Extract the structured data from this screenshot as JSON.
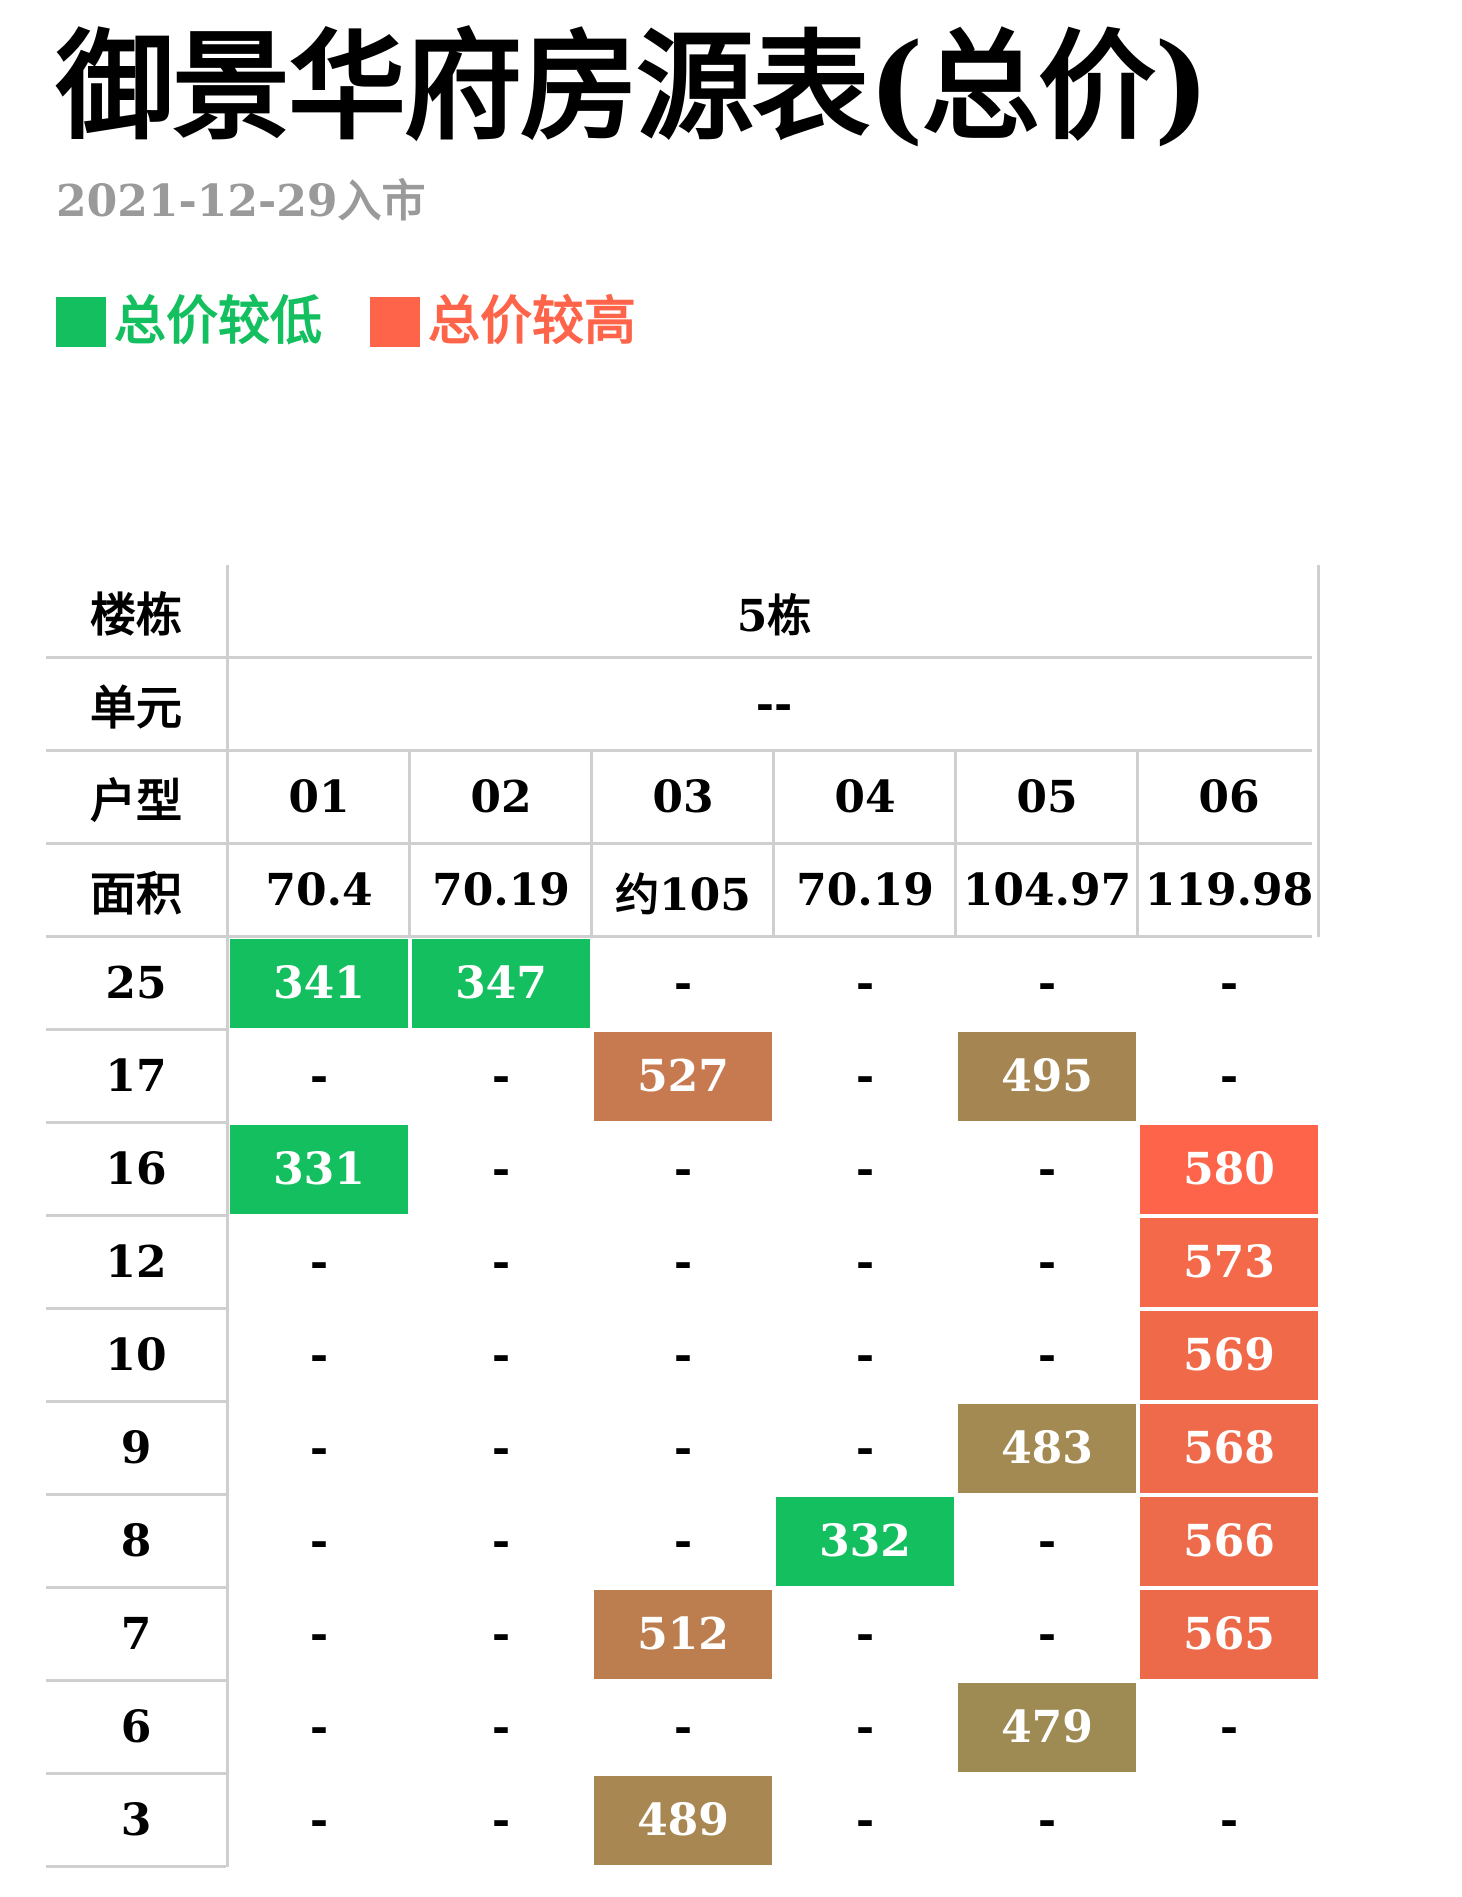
{
  "title": "御景华府房源表(总价)",
  "subtitle": "2021-12-29入市",
  "legend": [
    {
      "label": "总价较低",
      "color": "#13bf5f"
    },
    {
      "label": "总价较高",
      "color": "#fd6449"
    }
  ],
  "table": {
    "labels": {
      "building": "楼栋",
      "unit": "单元",
      "type": "户型",
      "area": "面积"
    },
    "building": "5栋",
    "unit": "--",
    "types": [
      "01",
      "02",
      "03",
      "04",
      "05",
      "06"
    ],
    "areas": [
      "70.4",
      "70.19",
      "约105",
      "70.19",
      "104.97",
      "119.98"
    ],
    "rows": [
      {
        "floor": "25",
        "cells": [
          {
            "text": "341",
            "color": "#13bf5f"
          },
          {
            "text": "347",
            "color": "#13bf5f"
          },
          {
            "text": "-"
          },
          {
            "text": "-"
          },
          {
            "text": "-"
          },
          {
            "text": "-"
          }
        ]
      },
      {
        "floor": "17",
        "cells": [
          {
            "text": "-"
          },
          {
            "text": "-"
          },
          {
            "text": "527",
            "color": "#c77a4f"
          },
          {
            "text": "-"
          },
          {
            "text": "495",
            "color": "#a58652"
          },
          {
            "text": "-"
          }
        ]
      },
      {
        "floor": "16",
        "cells": [
          {
            "text": "331",
            "color": "#13bf5f"
          },
          {
            "text": "-"
          },
          {
            "text": "-"
          },
          {
            "text": "-"
          },
          {
            "text": "-"
          },
          {
            "text": "580",
            "color": "#fd6449"
          }
        ]
      },
      {
        "floor": "12",
        "cells": [
          {
            "text": "-"
          },
          {
            "text": "-"
          },
          {
            "text": "-"
          },
          {
            "text": "-"
          },
          {
            "text": "-"
          },
          {
            "text": "573",
            "color": "#f3694a"
          }
        ]
      },
      {
        "floor": "10",
        "cells": [
          {
            "text": "-"
          },
          {
            "text": "-"
          },
          {
            "text": "-"
          },
          {
            "text": "-"
          },
          {
            "text": "-"
          },
          {
            "text": "569",
            "color": "#f06a4a"
          }
        ]
      },
      {
        "floor": "9",
        "cells": [
          {
            "text": "-"
          },
          {
            "text": "-"
          },
          {
            "text": "-"
          },
          {
            "text": "-"
          },
          {
            "text": "483",
            "color": "#a28a52"
          },
          {
            "text": "568",
            "color": "#ef6a4a"
          }
        ]
      },
      {
        "floor": "8",
        "cells": [
          {
            "text": "-"
          },
          {
            "text": "-"
          },
          {
            "text": "-"
          },
          {
            "text": "332",
            "color": "#13bf5f"
          },
          {
            "text": "-"
          },
          {
            "text": "566",
            "color": "#ed6a4a"
          }
        ]
      },
      {
        "floor": "7",
        "cells": [
          {
            "text": "-"
          },
          {
            "text": "-"
          },
          {
            "text": "512",
            "color": "#bd7e4f"
          },
          {
            "text": "-"
          },
          {
            "text": "-"
          },
          {
            "text": "565",
            "color": "#ec6a4a"
          }
        ]
      },
      {
        "floor": "6",
        "cells": [
          {
            "text": "-"
          },
          {
            "text": "-"
          },
          {
            "text": "-"
          },
          {
            "text": "-"
          },
          {
            "text": "479",
            "color": "#9d8b53"
          },
          {
            "text": "-"
          }
        ]
      },
      {
        "floor": "3",
        "cells": [
          {
            "text": "-"
          },
          {
            "text": "-"
          },
          {
            "text": "489",
            "color": "#a98752"
          },
          {
            "text": "-"
          },
          {
            "text": "-"
          },
          {
            "text": "-"
          }
        ]
      }
    ]
  }
}
